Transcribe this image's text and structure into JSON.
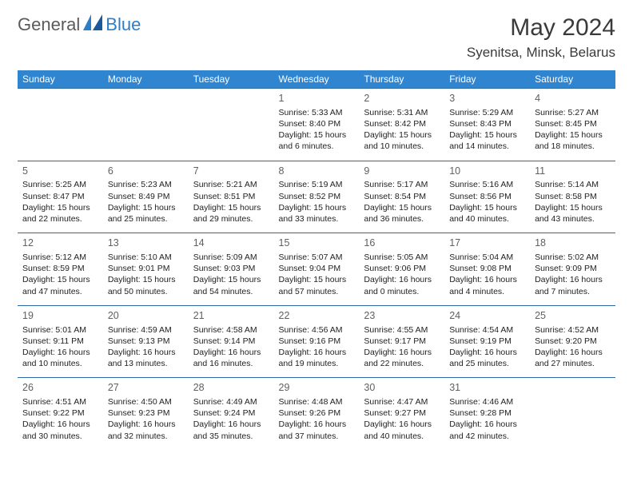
{
  "brand": {
    "text1": "General",
    "text2": "Blue"
  },
  "title": "May 2024",
  "location": "Syenitsa, Minsk, Belarus",
  "colors": {
    "header_bg": "#3085d0",
    "header_text": "#ffffff",
    "row_border": "#2b6aa5",
    "daynum": "#606060",
    "body_text": "#222222",
    "logo_gray": "#5a5a5a",
    "logo_blue": "#2d7dc7"
  },
  "day_headers": [
    "Sunday",
    "Monday",
    "Tuesday",
    "Wednesday",
    "Thursday",
    "Friday",
    "Saturday"
  ],
  "weeks": [
    [
      {
        "n": "",
        "sr": "",
        "ss": "",
        "dl": ""
      },
      {
        "n": "",
        "sr": "",
        "ss": "",
        "dl": ""
      },
      {
        "n": "",
        "sr": "",
        "ss": "",
        "dl": ""
      },
      {
        "n": "1",
        "sr": "5:33 AM",
        "ss": "8:40 PM",
        "dl": "15 hours and 6 minutes."
      },
      {
        "n": "2",
        "sr": "5:31 AM",
        "ss": "8:42 PM",
        "dl": "15 hours and 10 minutes."
      },
      {
        "n": "3",
        "sr": "5:29 AM",
        "ss": "8:43 PM",
        "dl": "15 hours and 14 minutes."
      },
      {
        "n": "4",
        "sr": "5:27 AM",
        "ss": "8:45 PM",
        "dl": "15 hours and 18 minutes."
      }
    ],
    [
      {
        "n": "5",
        "sr": "5:25 AM",
        "ss": "8:47 PM",
        "dl": "15 hours and 22 minutes."
      },
      {
        "n": "6",
        "sr": "5:23 AM",
        "ss": "8:49 PM",
        "dl": "15 hours and 25 minutes."
      },
      {
        "n": "7",
        "sr": "5:21 AM",
        "ss": "8:51 PM",
        "dl": "15 hours and 29 minutes."
      },
      {
        "n": "8",
        "sr": "5:19 AM",
        "ss": "8:52 PM",
        "dl": "15 hours and 33 minutes."
      },
      {
        "n": "9",
        "sr": "5:17 AM",
        "ss": "8:54 PM",
        "dl": "15 hours and 36 minutes."
      },
      {
        "n": "10",
        "sr": "5:16 AM",
        "ss": "8:56 PM",
        "dl": "15 hours and 40 minutes."
      },
      {
        "n": "11",
        "sr": "5:14 AM",
        "ss": "8:58 PM",
        "dl": "15 hours and 43 minutes."
      }
    ],
    [
      {
        "n": "12",
        "sr": "5:12 AM",
        "ss": "8:59 PM",
        "dl": "15 hours and 47 minutes."
      },
      {
        "n": "13",
        "sr": "5:10 AM",
        "ss": "9:01 PM",
        "dl": "15 hours and 50 minutes."
      },
      {
        "n": "14",
        "sr": "5:09 AM",
        "ss": "9:03 PM",
        "dl": "15 hours and 54 minutes."
      },
      {
        "n": "15",
        "sr": "5:07 AM",
        "ss": "9:04 PM",
        "dl": "15 hours and 57 minutes."
      },
      {
        "n": "16",
        "sr": "5:05 AM",
        "ss": "9:06 PM",
        "dl": "16 hours and 0 minutes."
      },
      {
        "n": "17",
        "sr": "5:04 AM",
        "ss": "9:08 PM",
        "dl": "16 hours and 4 minutes."
      },
      {
        "n": "18",
        "sr": "5:02 AM",
        "ss": "9:09 PM",
        "dl": "16 hours and 7 minutes."
      }
    ],
    [
      {
        "n": "19",
        "sr": "5:01 AM",
        "ss": "9:11 PM",
        "dl": "16 hours and 10 minutes."
      },
      {
        "n": "20",
        "sr": "4:59 AM",
        "ss": "9:13 PM",
        "dl": "16 hours and 13 minutes."
      },
      {
        "n": "21",
        "sr": "4:58 AM",
        "ss": "9:14 PM",
        "dl": "16 hours and 16 minutes."
      },
      {
        "n": "22",
        "sr": "4:56 AM",
        "ss": "9:16 PM",
        "dl": "16 hours and 19 minutes."
      },
      {
        "n": "23",
        "sr": "4:55 AM",
        "ss": "9:17 PM",
        "dl": "16 hours and 22 minutes."
      },
      {
        "n": "24",
        "sr": "4:54 AM",
        "ss": "9:19 PM",
        "dl": "16 hours and 25 minutes."
      },
      {
        "n": "25",
        "sr": "4:52 AM",
        "ss": "9:20 PM",
        "dl": "16 hours and 27 minutes."
      }
    ],
    [
      {
        "n": "26",
        "sr": "4:51 AM",
        "ss": "9:22 PM",
        "dl": "16 hours and 30 minutes."
      },
      {
        "n": "27",
        "sr": "4:50 AM",
        "ss": "9:23 PM",
        "dl": "16 hours and 32 minutes."
      },
      {
        "n": "28",
        "sr": "4:49 AM",
        "ss": "9:24 PM",
        "dl": "16 hours and 35 minutes."
      },
      {
        "n": "29",
        "sr": "4:48 AM",
        "ss": "9:26 PM",
        "dl": "16 hours and 37 minutes."
      },
      {
        "n": "30",
        "sr": "4:47 AM",
        "ss": "9:27 PM",
        "dl": "16 hours and 40 minutes."
      },
      {
        "n": "31",
        "sr": "4:46 AM",
        "ss": "9:28 PM",
        "dl": "16 hours and 42 minutes."
      },
      {
        "n": "",
        "sr": "",
        "ss": "",
        "dl": ""
      }
    ]
  ],
  "labels": {
    "sunrise": "Sunrise: ",
    "sunset": "Sunset: ",
    "daylight": "Daylight: "
  }
}
